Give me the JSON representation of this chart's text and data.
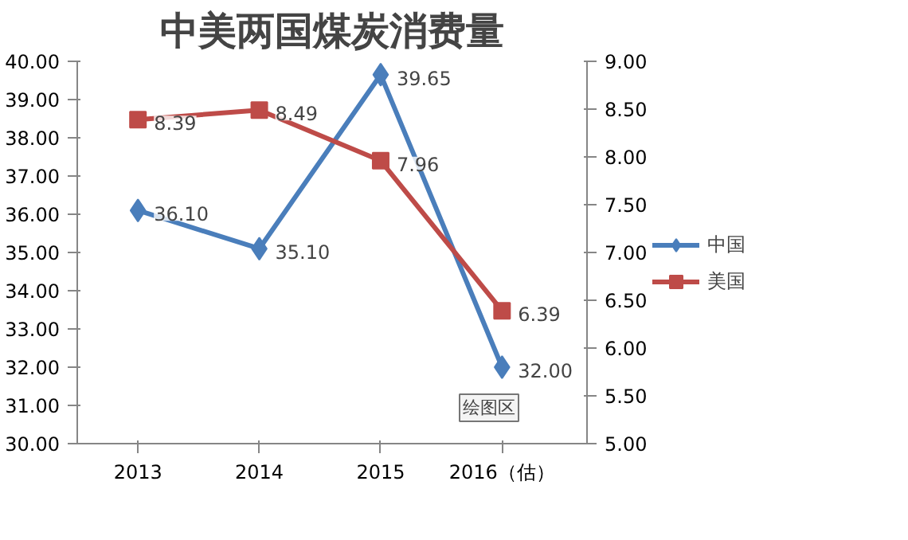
{
  "chart_data": {
    "type": "line",
    "title": "中美两国煤炭消费量",
    "categories": [
      "2013",
      "2014",
      "2015",
      "2016（估）"
    ],
    "series": [
      {
        "name": "中国",
        "color": "#4a7ebb",
        "marker": "diamond",
        "values": [
          36.1,
          35.1,
          39.65,
          32.0
        ],
        "value_labels": [
          "36.10",
          "35.10",
          "39.65",
          "32.00"
        ]
      },
      {
        "name": "美国",
        "color": "#be4b48",
        "marker": "square",
        "axis": "y2",
        "values": [
          8.39,
          8.49,
          7.96,
          6.39
        ],
        "value_labels": [
          "8.39",
          "8.49",
          "7.96",
          "6.39"
        ]
      }
    ],
    "ylim": [
      30,
      40
    ],
    "yticks": [
      {
        "value": 30,
        "label": "30.00"
      },
      {
        "value": 31,
        "label": "31.00"
      },
      {
        "value": 32,
        "label": "32.00"
      },
      {
        "value": 33,
        "label": "33.00"
      },
      {
        "value": 34,
        "label": "34.00"
      },
      {
        "value": 35,
        "label": "35.00"
      },
      {
        "value": 36,
        "label": "36.00"
      },
      {
        "value": 37,
        "label": "37.00"
      },
      {
        "value": 38,
        "label": "38.00"
      },
      {
        "value": 39,
        "label": "39.00"
      },
      {
        "value": 40,
        "label": "40.00"
      }
    ],
    "y2lim": [
      5,
      9
    ],
    "y2ticks": [
      {
        "value": 5,
        "label": "5.00"
      },
      {
        "value": 5.5,
        "label": "5.50"
      },
      {
        "value": 6,
        "label": "6.00"
      },
      {
        "value": 6.5,
        "label": "6.50"
      },
      {
        "value": 7,
        "label": "7.00"
      },
      {
        "value": 7.5,
        "label": "7.50"
      },
      {
        "value": 8,
        "label": "8.00"
      },
      {
        "value": 8.5,
        "label": "8.50"
      },
      {
        "value": 9,
        "label": "9.00"
      }
    ],
    "legend": "right",
    "annotations": [
      "绘图区"
    ]
  }
}
